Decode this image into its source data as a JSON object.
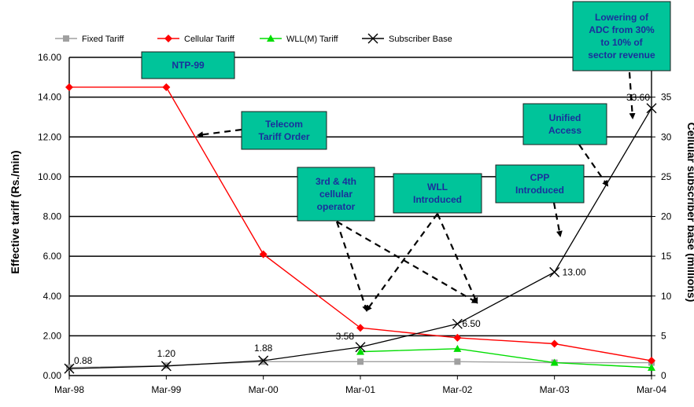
{
  "chart_data": {
    "type": "line",
    "categories": [
      "Mar-98",
      "Mar-99",
      "Mar-00",
      "Mar-01",
      "Mar-02",
      "Mar-03",
      "Mar-04"
    ],
    "ylabel": "Effective tariff (Rs./min)",
    "y2label": "Cellular subscriber base (millions)",
    "ylim": [
      0,
      16
    ],
    "y2lim": [
      0,
      40
    ],
    "yticks": [
      "0.00",
      "2.00",
      "4.00",
      "6.00",
      "8.00",
      "10.00",
      "12.00",
      "14.00",
      "16.00"
    ],
    "y2ticks": [
      "0",
      "5",
      "10",
      "15",
      "20",
      "25",
      "30",
      "35"
    ],
    "grid": "horizontal",
    "legend_position": "top",
    "series": [
      {
        "name": "Fixed Tariff",
        "axis": "left",
        "color": "#a0a0a0",
        "marker": "square",
        "values": [
          0.4,
          0.5,
          0.7,
          0.7,
          0.7,
          0.65,
          0.65
        ]
      },
      {
        "name": "Cellular Tariff",
        "axis": "left",
        "color": "#ff0000",
        "marker": "diamond",
        "values": [
          14.5,
          14.5,
          6.1,
          2.4,
          1.9,
          1.6,
          0.75
        ]
      },
      {
        "name": "WLL(M) Tariff",
        "axis": "left",
        "color": "#00dd00",
        "marker": "triangle",
        "values": [
          null,
          null,
          null,
          1.2,
          1.35,
          0.65,
          0.4
        ]
      },
      {
        "name": "Subscriber Base",
        "axis": "right",
        "color": "#000000",
        "marker": "x",
        "values": [
          0.88,
          1.2,
          1.88,
          3.58,
          6.5,
          13.0,
          33.6
        ]
      }
    ],
    "data_labels": [
      "0.88",
      "1.20",
      "1.88",
      "3.58",
      "6.50",
      "13.00",
      "33.60"
    ],
    "annotations": [
      {
        "lines": [
          "NTP-99"
        ]
      },
      {
        "lines": [
          "Telecom",
          "Tariff Order"
        ]
      },
      {
        "lines": [
          "3rd & 4th",
          "cellular",
          "operator"
        ]
      },
      {
        "lines": [
          "WLL",
          "Introduced"
        ]
      },
      {
        "lines": [
          "CPP",
          "Introduced"
        ]
      },
      {
        "lines": [
          "Unified",
          "Access"
        ]
      },
      {
        "lines": [
          "Lowering of",
          "ADC from 30%",
          "to 10% of",
          "sector revenue"
        ]
      }
    ],
    "colors": {
      "annotation_fill": "#00c49a",
      "annotation_text": "#1a2f9c",
      "grid": "#000000"
    }
  }
}
